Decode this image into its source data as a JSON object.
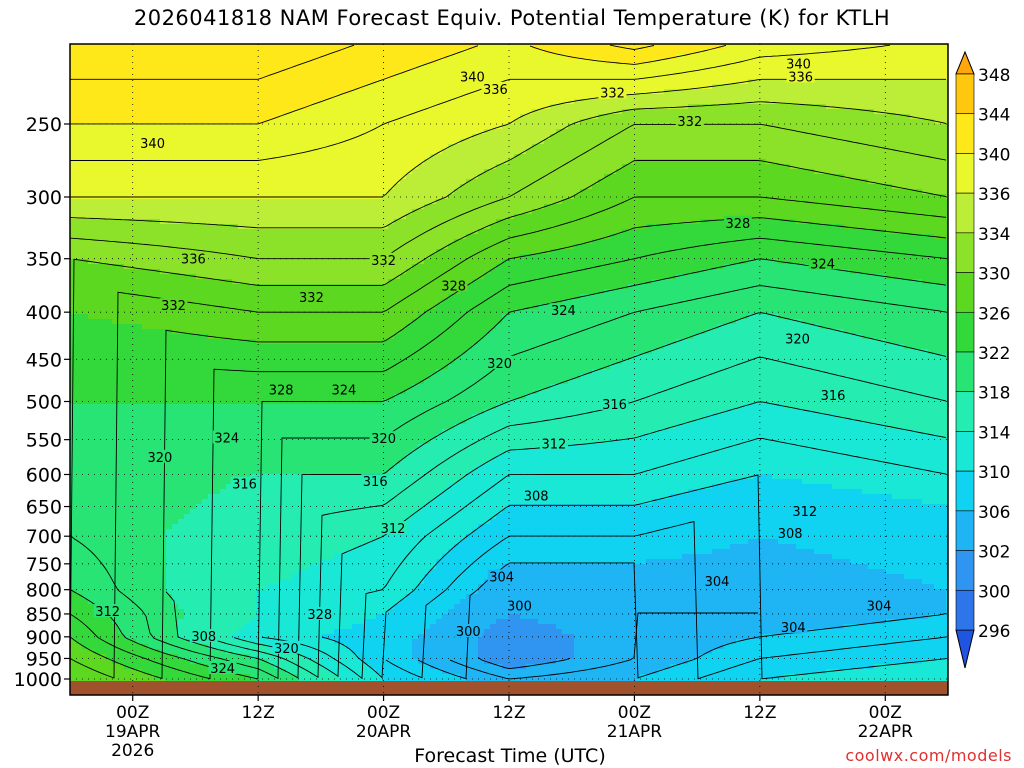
{
  "title": "2026041818 NAM Forecast Equiv. Potential Temperature (K) for KTLH",
  "credit": "coolwx.com/models",
  "chart_data": {
    "type": "heatmap",
    "title": "2026041818 NAM Forecast Equiv. Potential Temperature (K) for KTLH",
    "xlabel": "Forecast Time (UTC)",
    "ylabel": "",
    "y_scale": "log-pressure",
    "ylim": [
      1000,
      200
    ],
    "xlim_hours": [
      -6,
      78
    ],
    "grid": true,
    "y_ticks": [
      250,
      300,
      350,
      400,
      450,
      500,
      550,
      600,
      650,
      700,
      750,
      800,
      850,
      900,
      950,
      1000
    ],
    "x_ticks": [
      {
        "hour": 0,
        "lines": [
          "00Z",
          "19APR",
          "2026"
        ]
      },
      {
        "hour": 12,
        "lines": [
          "12Z"
        ]
      },
      {
        "hour": 24,
        "lines": [
          "00Z",
          "20APR"
        ]
      },
      {
        "hour": 36,
        "lines": [
          "12Z"
        ]
      },
      {
        "hour": 48,
        "lines": [
          "00Z",
          "21APR"
        ]
      },
      {
        "hour": 60,
        "lines": [
          "12Z"
        ]
      },
      {
        "hour": 72,
        "lines": [
          "00Z",
          "22APR"
        ]
      }
    ],
    "colorbar": {
      "levels": [
        296,
        300,
        302,
        306,
        310,
        314,
        318,
        322,
        326,
        330,
        334,
        336,
        340,
        344,
        348
      ],
      "colors": [
        "#1f55e0",
        "#2f75ea",
        "#2f95f0",
        "#1fb5f5",
        "#10d3f2",
        "#18e8d5",
        "#25ecb0",
        "#28e474",
        "#33d83a",
        "#5cd820",
        "#8ce228",
        "#bcee38",
        "#e8f82c",
        "#ffe81a",
        "#ffc80f",
        "#ffa60a"
      ]
    },
    "field_columns": [
      {
        "hour": -6,
        "values": {
          "1000": 330,
          "950": 328,
          "900": 326,
          "850": 324,
          "800": 322,
          "700": 320,
          "600": 320,
          "500": 322,
          "400": 326,
          "350": 330,
          "300": 336,
          "250": 340,
          "200": 344
        }
      },
      {
        "hour": 12,
        "values": {
          "1000": 322,
          "950": 318,
          "900": 312,
          "850": 314,
          "800": 314,
          "700": 316,
          "600": 318,
          "500": 322,
          "400": 328,
          "350": 332,
          "300": 336,
          "250": 340,
          "200": 344
        }
      },
      {
        "hour": 24,
        "values": {
          "1000": 310,
          "950": 308,
          "900": 308,
          "850": 310,
          "800": 312,
          "700": 314,
          "600": 318,
          "500": 322,
          "400": 328,
          "350": 332,
          "300": 336,
          "250": 338,
          "200": 342
        }
      },
      {
        "hour": 36,
        "values": {
          "1000": 304,
          "950": 300,
          "900": 300,
          "850": 302,
          "800": 304,
          "700": 308,
          "600": 312,
          "500": 318,
          "400": 322,
          "350": 326,
          "300": 332,
          "250": 336,
          "200": 340
        }
      },
      {
        "hour": 48,
        "values": {
          "1000": 306,
          "950": 304,
          "900": 304,
          "850": 304,
          "800": 304,
          "700": 308,
          "600": 312,
          "500": 316,
          "400": 320,
          "350": 324,
          "300": 328,
          "250": 332,
          "200": 344
        }
      },
      {
        "hour": 60,
        "values": {
          "1000": 310,
          "950": 308,
          "900": 306,
          "850": 304,
          "800": 304,
          "700": 306,
          "600": 310,
          "500": 314,
          "400": 318,
          "350": 322,
          "300": 328,
          "250": 332,
          "200": 340
        }
      },
      {
        "hour": 78,
        "values": {
          "1000": 312,
          "950": 310,
          "900": 308,
          "850": 306,
          "800": 306,
          "700": 308,
          "600": 312,
          "500": 316,
          "400": 320,
          "350": 324,
          "300": 330,
          "250": 334,
          "200": 338
        }
      }
    ],
    "contour_labels": [
      {
        "text": "340",
        "hour": 32.5,
        "p": 222
      },
      {
        "text": "336",
        "hour": 34.7,
        "p": 229
      },
      {
        "text": "340",
        "hour": 63.7,
        "p": 215
      },
      {
        "text": "336",
        "hour": 63.9,
        "p": 222
      },
      {
        "text": "332",
        "hour": 45.9,
        "p": 231
      },
      {
        "text": "332",
        "hour": 53.3,
        "p": 248
      },
      {
        "text": "340",
        "hour": 1.9,
        "p": 262
      },
      {
        "text": "336",
        "hour": 5.8,
        "p": 350
      },
      {
        "text": "332",
        "hour": 3.9,
        "p": 393
      },
      {
        "text": "332",
        "hour": 24.0,
        "p": 351
      },
      {
        "text": "332",
        "hour": 17.1,
        "p": 385
      },
      {
        "text": "328",
        "hour": 57.9,
        "p": 320
      },
      {
        "text": "328",
        "hour": 30.7,
        "p": 374
      },
      {
        "text": "324",
        "hour": 66.0,
        "p": 354
      },
      {
        "text": "324",
        "hour": 41.2,
        "p": 398
      },
      {
        "text": "320",
        "hour": 63.6,
        "p": 427
      },
      {
        "text": "320",
        "hour": 35.1,
        "p": 454
      },
      {
        "text": "328",
        "hour": 14.2,
        "p": 485
      },
      {
        "text": "324",
        "hour": 20.2,
        "p": 485
      },
      {
        "text": "316",
        "hour": 67.0,
        "p": 492
      },
      {
        "text": "316",
        "hour": 46.1,
        "p": 503
      },
      {
        "text": "324",
        "hour": 9.0,
        "p": 547
      },
      {
        "text": "320",
        "hour": 2.6,
        "p": 574
      },
      {
        "text": "320",
        "hour": 24.0,
        "p": 548
      },
      {
        "text": "312",
        "hour": 40.3,
        "p": 555
      },
      {
        "text": "316",
        "hour": 10.7,
        "p": 614
      },
      {
        "text": "316",
        "hour": 23.2,
        "p": 610
      },
      {
        "text": "308",
        "hour": 38.6,
        "p": 632
      },
      {
        "text": "312",
        "hour": 64.3,
        "p": 657
      },
      {
        "text": "312",
        "hour": 24.9,
        "p": 686
      },
      {
        "text": "308",
        "hour": 62.9,
        "p": 694
      },
      {
        "text": "304",
        "hour": 35.3,
        "p": 774
      },
      {
        "text": "304",
        "hour": 55.9,
        "p": 783
      },
      {
        "text": "300",
        "hour": 37.0,
        "p": 832
      },
      {
        "text": "304",
        "hour": 71.4,
        "p": 832
      },
      {
        "text": "312",
        "hour": -2.4,
        "p": 844
      },
      {
        "text": "328",
        "hour": 17.9,
        "p": 850
      },
      {
        "text": "300",
        "hour": 32.1,
        "p": 887
      },
      {
        "text": "304",
        "hour": 63.2,
        "p": 878
      },
      {
        "text": "308",
        "hour": 6.8,
        "p": 898
      },
      {
        "text": "320",
        "hour": 14.7,
        "p": 925
      },
      {
        "text": "324",
        "hour": 8.6,
        "p": 973
      }
    ]
  }
}
